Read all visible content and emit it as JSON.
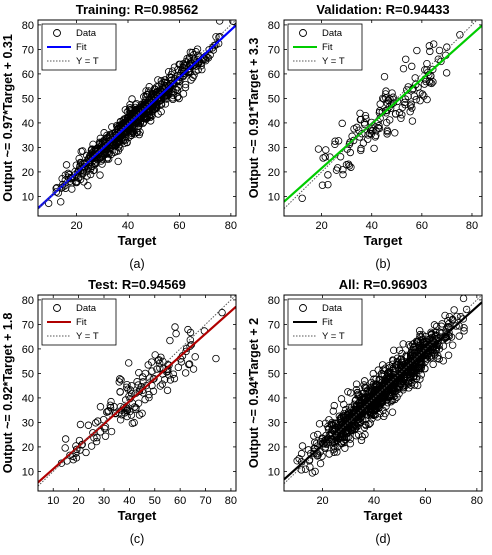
{
  "colors": {
    "marker": "#000000",
    "axis": "#000000",
    "ideal_line": "#555555"
  },
  "chart_data": [
    {
      "panel_label": "(a)",
      "type": "scatter",
      "title": "Training: R=0.98562",
      "xlabel": "Target",
      "ylabel": "Output ~= 0.97*Target + 0.31",
      "xlim": [
        5,
        82
      ],
      "ylim": [
        2,
        82
      ],
      "xticks": [
        20,
        40,
        60,
        80
      ],
      "yticks": [
        10,
        20,
        30,
        40,
        50,
        60,
        70,
        80
      ],
      "grid": false,
      "legend_position": "top-left",
      "legend": [
        "Data",
        "Fit",
        "Y = T"
      ],
      "fit": {
        "slope": 0.97,
        "intercept": 0.31,
        "color": "#0000ff"
      },
      "data_summary": {
        "points": 700,
        "x_range": [
          5,
          82
        ],
        "noise_sd": 3.3
      },
      "series": [
        {
          "name": "Data"
        },
        {
          "name": "Fit"
        },
        {
          "name": "Y = T"
        }
      ]
    },
    {
      "panel_label": "(b)",
      "type": "scatter",
      "title": "Validation: R=0.94433",
      "xlabel": "Target",
      "ylabel": "Output ~= 0.91*Target + 3.3",
      "xlim": [
        5,
        84
      ],
      "ylim": [
        2,
        82
      ],
      "xticks": [
        20,
        40,
        60,
        80
      ],
      "yticks": [
        10,
        20,
        30,
        40,
        50,
        60,
        70,
        80
      ],
      "grid": false,
      "legend_position": "top-left",
      "legend": [
        "Data",
        "Fit",
        "Y = T"
      ],
      "fit": {
        "slope": 0.91,
        "intercept": 3.3,
        "color": "#00cc00"
      },
      "data_summary": {
        "points": 150,
        "x_range": [
          7,
          82
        ],
        "noise_sd": 5.5
      },
      "series": [
        {
          "name": "Data"
        },
        {
          "name": "Fit"
        },
        {
          "name": "Y = T"
        }
      ]
    },
    {
      "panel_label": "(c)",
      "type": "scatter",
      "title": "Test: R=0.94569",
      "xlabel": "Target",
      "ylabel": "Output ~= 0.92*Target + 1.8",
      "xlim": [
        4,
        82
      ],
      "ylim": [
        2,
        82
      ],
      "xticks": [
        10,
        20,
        30,
        40,
        50,
        60,
        70,
        80
      ],
      "yticks": [
        10,
        20,
        30,
        40,
        50,
        60,
        70,
        80
      ],
      "grid": false,
      "legend_position": "top-left",
      "legend": [
        "Data",
        "Fit",
        "Y = T"
      ],
      "fit": {
        "slope": 0.92,
        "intercept": 1.8,
        "color": "#b00000"
      },
      "data_summary": {
        "points": 150,
        "x_range": [
          6,
          80
        ],
        "noise_sd": 5.3
      },
      "series": [
        {
          "name": "Data"
        },
        {
          "name": "Fit"
        },
        {
          "name": "Y = T"
        }
      ]
    },
    {
      "panel_label": "(d)",
      "type": "scatter",
      "title": "All: R=0.96903",
      "xlabel": "Target",
      "ylabel": "Output ~= 0.94*Target + 2",
      "xlim": [
        5,
        82
      ],
      "ylim": [
        2,
        82
      ],
      "xticks": [
        20,
        40,
        60,
        80
      ],
      "yticks": [
        10,
        20,
        30,
        40,
        50,
        60,
        70,
        80
      ],
      "grid": false,
      "legend_position": "top-left",
      "legend": [
        "Data",
        "Fit",
        "Y = T"
      ],
      "fit": {
        "slope": 0.94,
        "intercept": 2.0,
        "color": "#000000"
      },
      "data_summary": {
        "points": 1000,
        "x_range": [
          5,
          82
        ],
        "noise_sd": 4.2
      },
      "series": [
        {
          "name": "Data"
        },
        {
          "name": "Fit"
        },
        {
          "name": "Y = T"
        }
      ]
    }
  ]
}
